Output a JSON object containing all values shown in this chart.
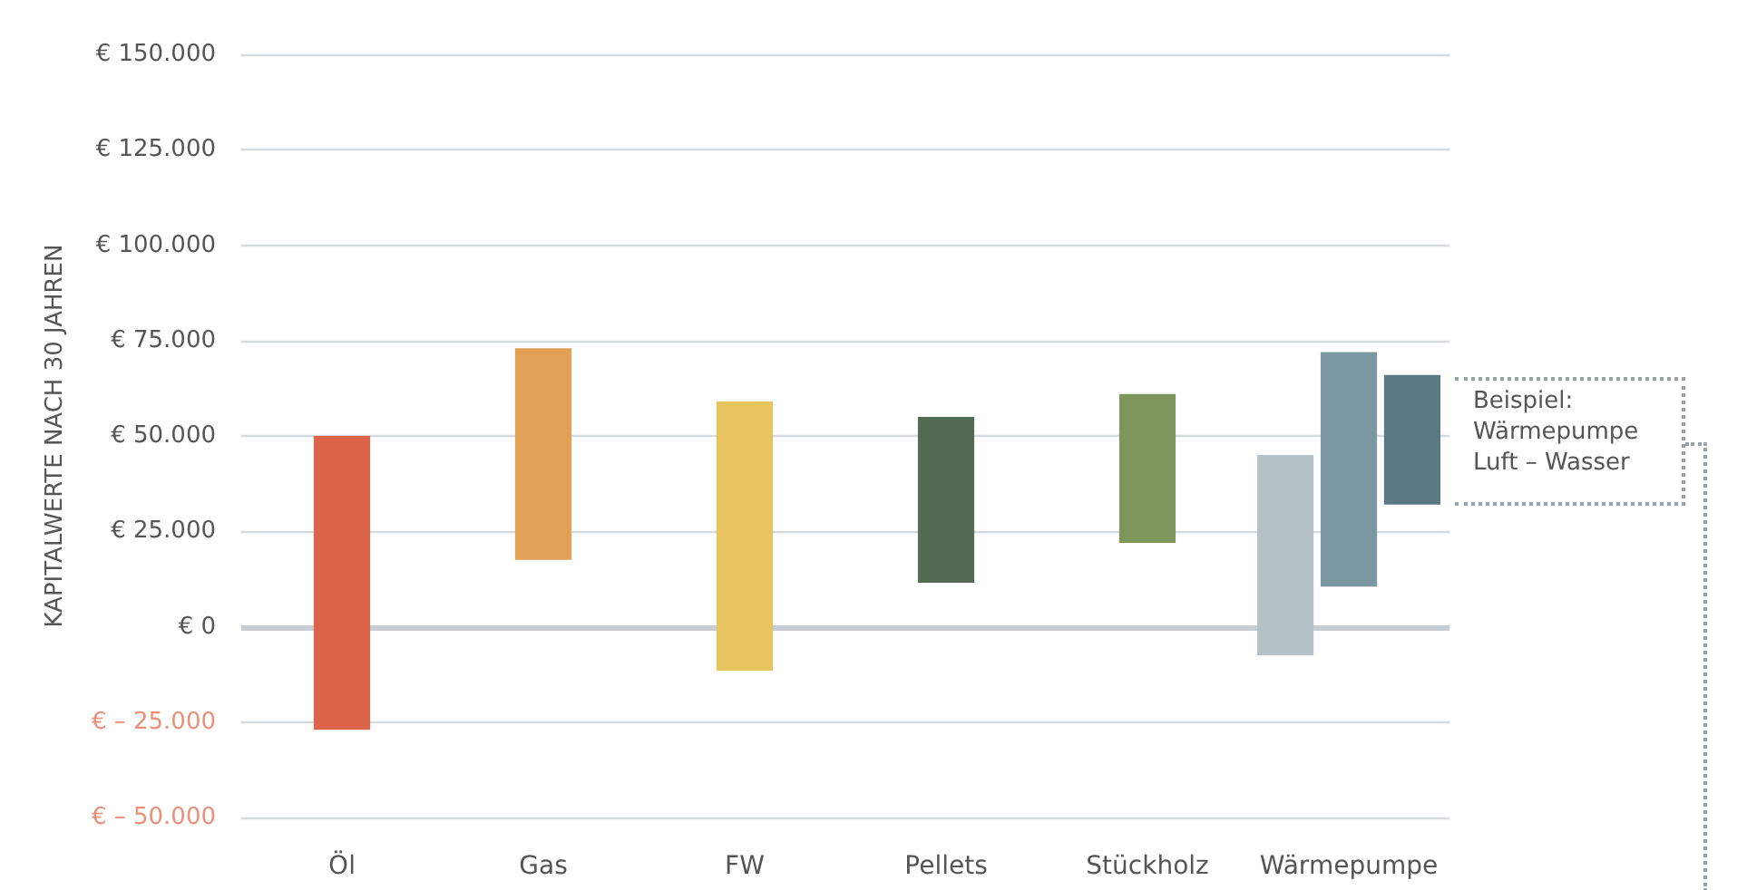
{
  "chart_data": {
    "type": "bar",
    "ylabel": "KAPITALWERTE NACH 30 JAHREN",
    "categories": [
      "Öl",
      "Gas",
      "FW",
      "Pellets",
      "Stückholz",
      "Wärmepumpe"
    ],
    "series": [
      {
        "colors": [
          "#dc644a",
          "#e2a057",
          "#e6c55e",
          "#536a53",
          "#7e955b",
          "#b5c1c6"
        ],
        "values": [
          77000,
          55500,
          70500,
          43500,
          39000,
          52500
        ],
        "base": [
          -27000,
          17500,
          -11500,
          11500,
          22000,
          -7500
        ]
      },
      {
        "color": "#7b98a2",
        "values": [
          null,
          null,
          null,
          null,
          null,
          61500
        ],
        "base": [
          null,
          null,
          null,
          null,
          null,
          10500
        ]
      },
      {
        "color": "#5b7984",
        "values": [
          null,
          null,
          null,
          null,
          null,
          34000
        ],
        "base": [
          null,
          null,
          null,
          null,
          null,
          32000
        ]
      }
    ],
    "ylim": [
      -50000,
      150000
    ],
    "yticks": [
      {
        "value": -50000,
        "label": "€ – 50.000"
      },
      {
        "value": -25000,
        "label": "€ – 25.000"
      },
      {
        "value": 0,
        "label": "€ 0"
      },
      {
        "value": 25000,
        "label": "€ 25.000"
      },
      {
        "value": 50000,
        "label": "€ 50.000"
      },
      {
        "value": 75000,
        "label": "€ 75.000"
      },
      {
        "value": 100000,
        "label": "€ 100.000"
      },
      {
        "value": 125000,
        "label": "€ 125.000"
      },
      {
        "value": 150000,
        "label": "€ 150.000"
      }
    ],
    "grid": "y",
    "ref_lines": [
      {
        "axis": "y",
        "value": 0,
        "color": "#c5cdd2"
      }
    ],
    "annotations": [
      "Beispiel: Wärmepumpe Luft – Wasser"
    ]
  }
}
